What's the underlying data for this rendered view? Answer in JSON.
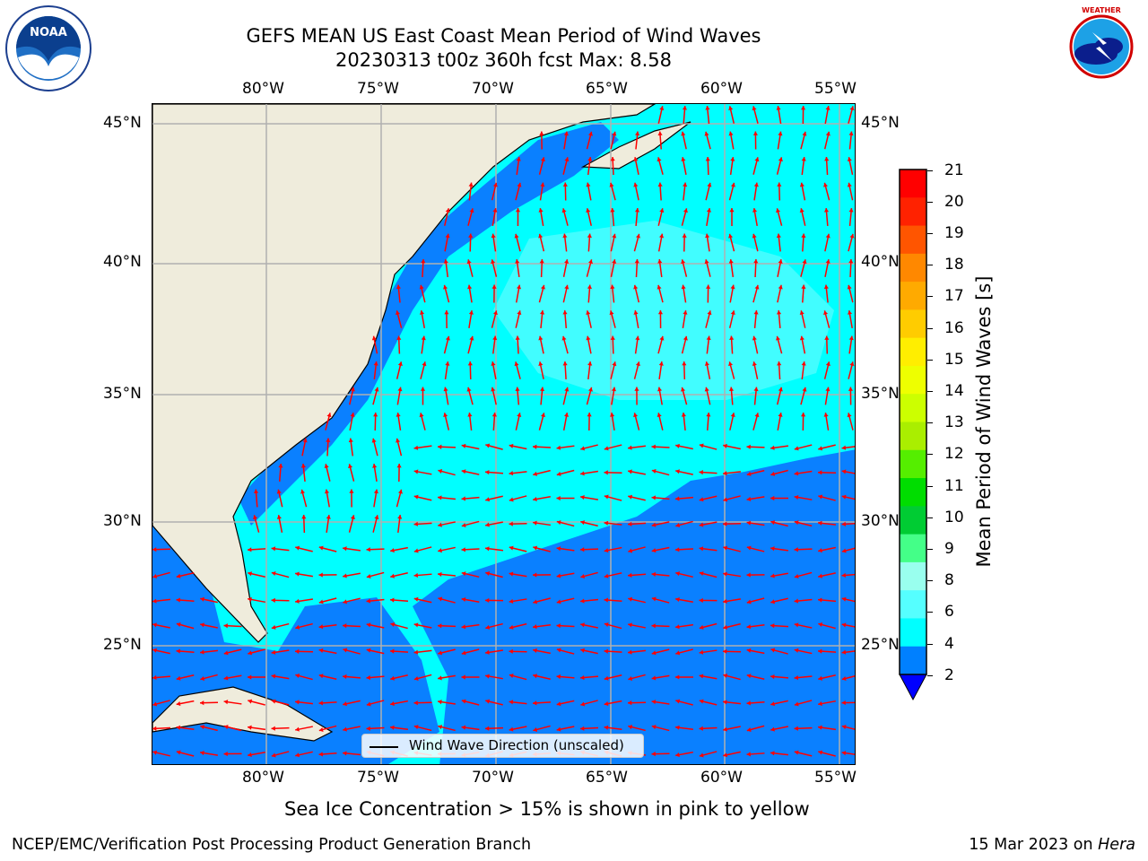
{
  "header": {
    "title_line1": "GEFS MEAN US East Coast Mean Period of Wind Waves",
    "title_line2": "20230313 t00z 360h fcst   Max: 8.58"
  },
  "logos": {
    "left": {
      "icon": "noaa-logo-icon",
      "text": "NOAA",
      "ring_text": "NATIONAL OCEANIC AND ATMOSPHERIC ADMINISTRATION · U.S. DEPARTMENT OF COMMERCE"
    },
    "right": {
      "icon": "nws-logo-icon",
      "ring_text": "NATIONAL WEATHER SERVICE"
    }
  },
  "map": {
    "lon_labels": [
      "80°W",
      "75°W",
      "70°W",
      "65°W",
      "60°W",
      "55°W"
    ],
    "lat_labels": [
      "45°N",
      "40°N",
      "35°N",
      "30°N",
      "25°N"
    ],
    "legend_label": "Wind Wave Direction (unscaled)",
    "arrow_color": "#ff0000",
    "land_color": "#efecdc",
    "grid_color": "#b0b0b0"
  },
  "colorbar": {
    "label": "Mean Period of Wind Waves [s]",
    "ticks": [
      "21",
      "20",
      "19",
      "18",
      "17",
      "16",
      "15",
      "14",
      "13",
      "12",
      "11",
      "10",
      "9",
      "8",
      "6",
      "4",
      "2"
    ],
    "colors": [
      "#ff0000",
      "#ff2200",
      "#ff5500",
      "#ff8800",
      "#ffaa00",
      "#ffcc00",
      "#ffee00",
      "#eeff00",
      "#ccff00",
      "#aaee00",
      "#55ee00",
      "#00dd00",
      "#00cc33",
      "#44ff88",
      "#99ffee",
      "#55ffff",
      "#00ffff",
      "#0080ff"
    ],
    "under_color": "#0000ff"
  },
  "notes": {
    "sea_ice": "Sea Ice Concentration > 15% is shown in pink to yellow"
  },
  "footer": {
    "left": "NCEP/EMC/Verification Post Processing Product Generation Branch",
    "date": "15 Mar 2023 on ",
    "host": "Hera"
  }
}
